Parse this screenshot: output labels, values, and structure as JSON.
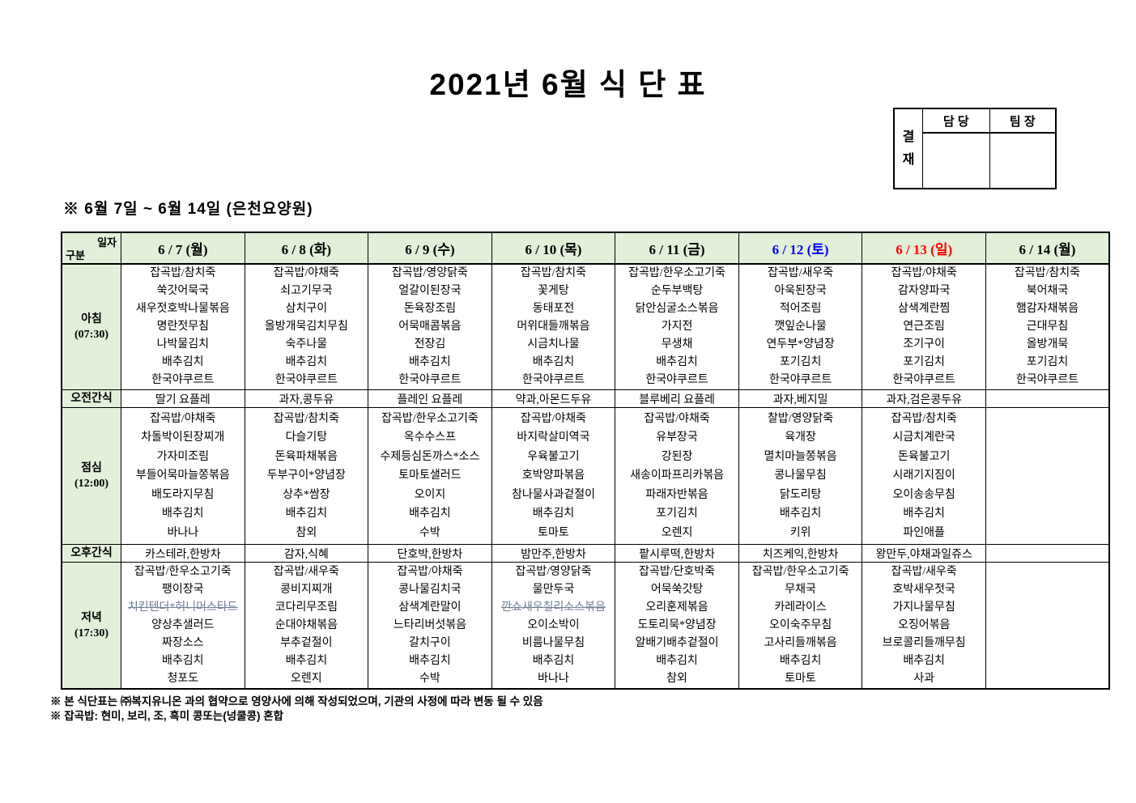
{
  "title": "2021년 6월 식 단 표",
  "approval": {
    "label": "결재",
    "columns": [
      "담 당",
      "팀 장"
    ]
  },
  "subtitle": "※ 6월 7일 ~ 6월 14일 (은천요양원)",
  "colors": {
    "header_green": "#e2f0d9",
    "saturday_blue": "#0000ff",
    "sunday_red": "#ff0000",
    "default_text": "#000000",
    "struck_text": "#6f7f95"
  },
  "table": {
    "corner": {
      "top": "일자",
      "bottom": "구분"
    },
    "columns": [
      {
        "label": "6 / 7 (월)",
        "color": "#000000"
      },
      {
        "label": "6 / 8 (화)",
        "color": "#000000"
      },
      {
        "label": "6 / 9 (수)",
        "color": "#000000"
      },
      {
        "label": "6 / 10 (목)",
        "color": "#000000"
      },
      {
        "label": "6 / 11 (금)",
        "color": "#000000"
      },
      {
        "label": "6 / 12 (토)",
        "color": "#0000ff"
      },
      {
        "label": "6 / 13 (일)",
        "color": "#ff0000"
      },
      {
        "label": "6 / 14 (월)",
        "color": "#000000"
      }
    ],
    "rows": [
      {
        "id": "breakfast",
        "type": "meal",
        "label": "아침",
        "sublabel": "(07:30)",
        "cells": [
          [
            "잡곡밥/참치죽",
            "쑥갓어묵국",
            "새우젓호박나물볶음",
            "명란젓무침",
            "나박물김치",
            "배추김치",
            "한국야쿠르트"
          ],
          [
            "잡곡밥/야채죽",
            "쇠고기무국",
            "삼치구이",
            "올방개묵김치무침",
            "숙주나물",
            "배추김치",
            "한국야쿠르트"
          ],
          [
            "잡곡밥/영양닭죽",
            "얼갈이된장국",
            "돈육장조림",
            "어묵매콤볶음",
            "전장김",
            "배추김치",
            "한국야쿠르트"
          ],
          [
            "잡곡밥/참치죽",
            "꽃게탕",
            "동태포전",
            "머위대들깨볶음",
            "시금치나물",
            "배추김치",
            "한국야쿠르트"
          ],
          [
            "잡곡밥/한우소고기죽",
            "순두부백탕",
            "닭안심굴소스볶음",
            "가지전",
            "무생채",
            "배추김치",
            "한국야쿠르트"
          ],
          [
            "잡곡밥/새우죽",
            "아욱된장국",
            "적어조림",
            "깻잎순나물",
            "연두부*양념장",
            "포기김치",
            "한국야쿠르트"
          ],
          [
            "잡곡밥/야채죽",
            "감자양파국",
            "삼색계란찜",
            "연근조림",
            "조기구이",
            "포기김치",
            "한국야쿠르트"
          ],
          [
            "잡곡밥/참치죽",
            "북어채국",
            "햄감자채볶음",
            "근대무침",
            "올방개묵",
            "포기김치",
            "한국야쿠르트"
          ]
        ]
      },
      {
        "id": "morning-snack",
        "type": "snack",
        "label": "오전간식",
        "cells": [
          "딸기 요플레",
          "과자,콩두유",
          "플레인 요플레",
          "약과,아몬드두유",
          "블루베리 요플레",
          "과자,베지밀",
          "과자,검은콩두유",
          ""
        ]
      },
      {
        "id": "lunch",
        "type": "meal",
        "label": "점심",
        "sublabel": "(12:00)",
        "cells": [
          [
            "잡곡밥/야채죽",
            "차돌박이된장찌개",
            "가자미조림",
            "부들어묵마늘쫑볶음",
            "배도라지무침",
            "배추김치",
            "바나나"
          ],
          [
            "잡곡밥/참치죽",
            "다슬기탕",
            "돈육파채볶음",
            "두부구이*양념장",
            "상추*쌈장",
            "배추김치",
            "참외"
          ],
          [
            "잡곡밥/한우소고기죽",
            "옥수수스프",
            "수제등심돈까스*소스",
            "토마토샐러드",
            "오이지",
            "배추김치",
            "수박"
          ],
          [
            "잡곡밥/야채죽",
            "바지락살미역국",
            "우육불고기",
            "호박양파볶음",
            "참나물사과겉절이",
            "배추김치",
            "토마토"
          ],
          [
            "잡곡밥/야채죽",
            "유부장국",
            "강된장",
            "새송이파프리카볶음",
            "파래자반볶음",
            "포기김치",
            "오렌지"
          ],
          [
            "찰밥/영양닭죽",
            "육개장",
            "멸치마늘쫑볶음",
            "콩나물무침",
            "닭도리탕",
            "배추김치",
            "키위"
          ],
          [
            "잡곡밥/참치죽",
            "시금치계란국",
            "돈육불고기",
            "시래기지짐이",
            "오이송송무침",
            "배추김치",
            "파인애플"
          ],
          []
        ]
      },
      {
        "id": "afternoon-snack",
        "type": "snack",
        "label": "오후간식",
        "cells": [
          "카스테라,한방차",
          "감자,식혜",
          "단호박,한방차",
          "밤만주,한방차",
          "팥시루떡,한방차",
          "치즈케익,한방차",
          "왕만두,야채과일쥬스",
          ""
        ]
      },
      {
        "id": "dinner",
        "type": "meal",
        "label": "저녁",
        "sublabel": "(17:30)",
        "cells": [
          [
            "잡곡밥/한우소고기죽",
            "팽이장국",
            "치킨텐더*허니머스타드",
            "양상추샐러드",
            "짜장소스",
            "배추김치",
            "청포도"
          ],
          [
            "잡곡밥/새우죽",
            "콩비지찌개",
            "코다리무조림",
            "순대야채볶음",
            "부추겉절이",
            "배추김치",
            "오렌지"
          ],
          [
            "잡곡밥/야채죽",
            "콩나물김치국",
            "삼색계란말이",
            "느타리버섯볶음",
            "갈치구이",
            "배추김치",
            "수박"
          ],
          [
            "잡곡밥/영양닭죽",
            "물만두국",
            "깐쇼새우칠리소스볶음",
            "오이소박이",
            "비름나물무침",
            "배추김치",
            "바나나"
          ],
          [
            "잡곡밥/단호박죽",
            "어묵쑥갓탕",
            "오리훈제볶음",
            "도토리묵*양념장",
            "알배기배추겉절이",
            "배추김치",
            "참외"
          ],
          [
            "잡곡밥/한우소고기죽",
            "무채국",
            "카레라이스",
            "오이숙주무침",
            "고사리들깨볶음",
            "배추김치",
            "토마토"
          ],
          [
            "잡곡밥/새우죽",
            "호박새우젓국",
            "가지나물무침",
            "오징어볶음",
            "브로콜리들깨무침",
            "배추김치",
            "사과"
          ],
          []
        ]
      }
    ],
    "struck_items": [
      "치킨텐더*허니머스타드",
      "깐쇼새우칠리소스볶음"
    ]
  },
  "footnotes": [
    "※ 본 식단표는 ㈜복지유니온 과의 협약으로 영양사에 의해 작성되었으며, 기관의 사정에 따라 변동 될 수 있음",
    "※ 잡곡밥: 현미, 보리, 조, 흑미 콩또는(넝쿨콩) 혼합"
  ]
}
